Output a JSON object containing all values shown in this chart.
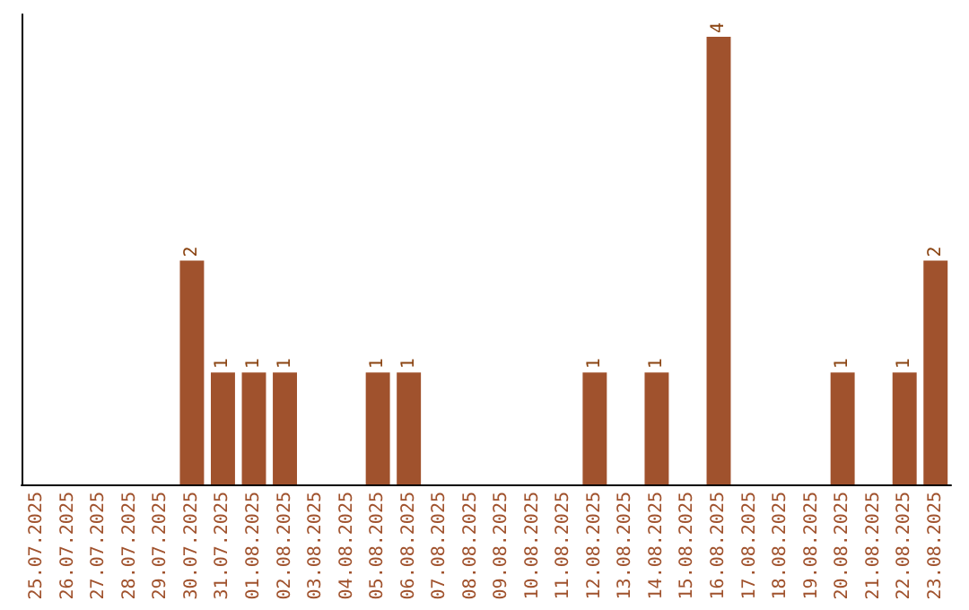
{
  "chart_data": {
    "type": "bar",
    "categories": [
      "25.07.2025",
      "26.07.2025",
      "27.07.2025",
      "28.07.2025",
      "29.07.2025",
      "30.07.2025",
      "31.07.2025",
      "01.08.2025",
      "02.08.2025",
      "03.08.2025",
      "04.08.2025",
      "05.08.2025",
      "06.08.2025",
      "07.08.2025",
      "08.08.2025",
      "09.08.2025",
      "10.08.2025",
      "11.08.2025",
      "12.08.2025",
      "13.08.2025",
      "14.08.2025",
      "15.08.2025",
      "16.08.2025",
      "17.08.2025",
      "18.08.2025",
      "19.08.2025",
      "20.08.2025",
      "21.08.2025",
      "22.08.2025",
      "23.08.2025"
    ],
    "values": [
      0,
      0,
      0,
      0,
      0,
      2,
      1,
      1,
      1,
      0,
      0,
      1,
      1,
      0,
      0,
      0,
      0,
      0,
      1,
      0,
      1,
      0,
      4,
      0,
      0,
      0,
      1,
      0,
      1,
      2
    ],
    "value_labels": [
      null,
      null,
      null,
      null,
      null,
      "2",
      "1",
      "1",
      "1",
      null,
      null,
      "1",
      "1",
      null,
      null,
      null,
      null,
      null,
      "1",
      null,
      "1",
      null,
      "4",
      null,
      null,
      null,
      "1",
      null,
      "1",
      "2"
    ],
    "color": "#a0522d",
    "ylim": [
      0,
      4.2
    ],
    "tick_labels": "x",
    "grid": false
  }
}
